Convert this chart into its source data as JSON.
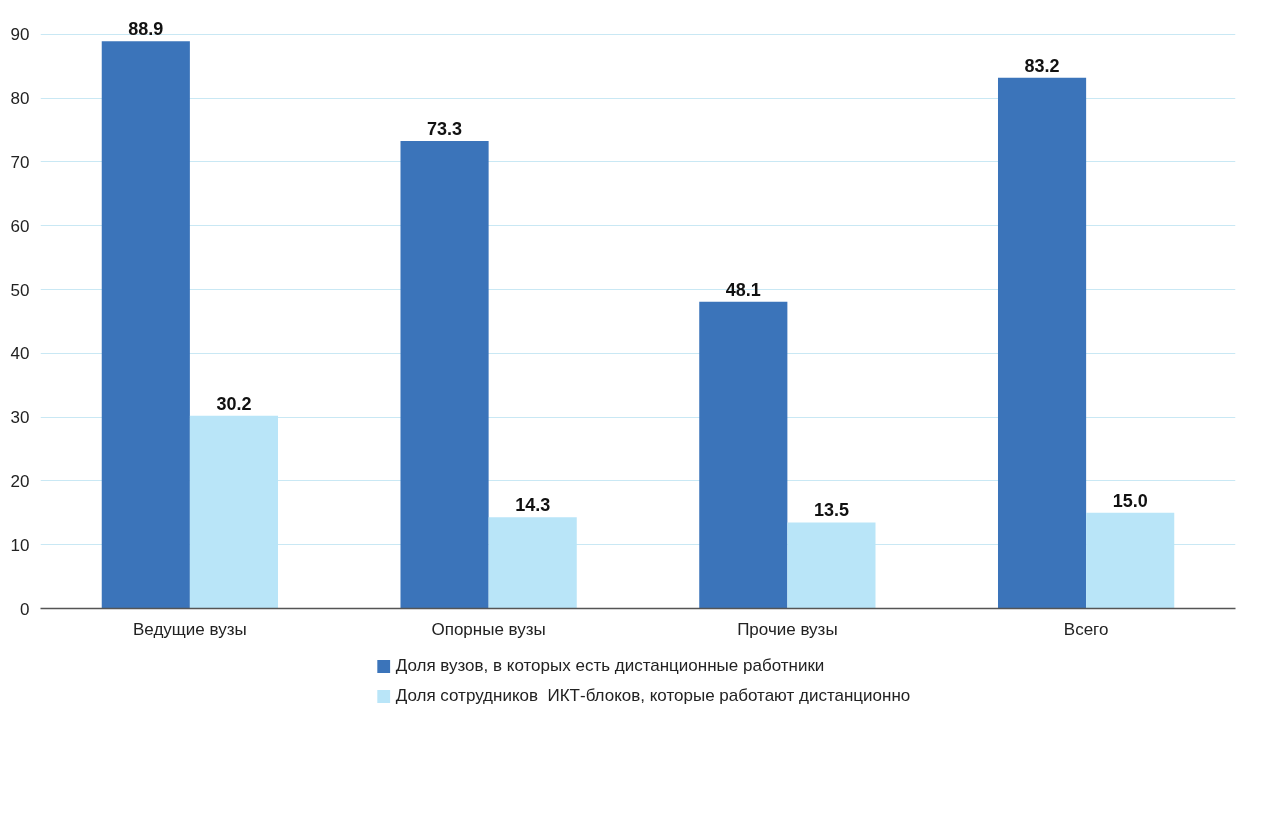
{
  "chart_data": {
    "type": "bar",
    "categories": [
      "Ведущие вузы",
      "Опорные вузы",
      "Прочие вузы",
      "Всего"
    ],
    "series": [
      {
        "name": "Доля вузов, в которых есть дистанционные работники",
        "color": "#3b74ba",
        "values": [
          88.9,
          73.3,
          48.1,
          83.2
        ]
      },
      {
        "name": "Доля сотрудников  ИКТ-блоков, которые работают дистанционно",
        "color": "#b9e5f8",
        "values": [
          30.2,
          14.3,
          13.5,
          15.0
        ]
      }
    ],
    "value_labels": [
      [
        "88.9",
        "73.3",
        "48.1",
        "83.2"
      ],
      [
        "30.2",
        "14.3",
        "13.5",
        "15.0"
      ]
    ],
    "ylim": [
      0,
      90
    ],
    "yticks": [
      0,
      10,
      20,
      30,
      40,
      50,
      60,
      70,
      80,
      90
    ],
    "grid": "y",
    "legend": "bottom"
  }
}
